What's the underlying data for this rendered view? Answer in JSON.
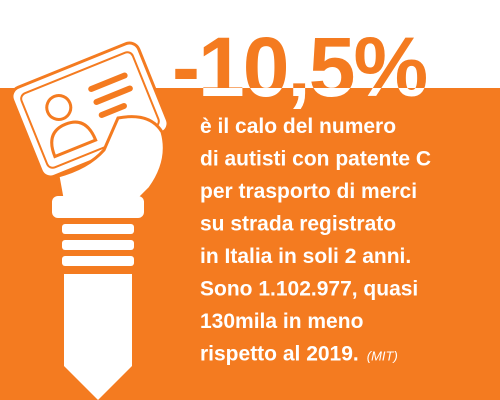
{
  "headline": "-10,5%",
  "body_lines": [
    "è il calo del numero",
    "di autisti con patente C",
    "per trasporto di merci",
    "su strada registrato",
    "in Italia in soli 2 anni.",
    "Sono 1.102.977, quasi",
    "130mila in meno",
    "rispetto al 2019."
  ],
  "source": "(MIT)"
}
